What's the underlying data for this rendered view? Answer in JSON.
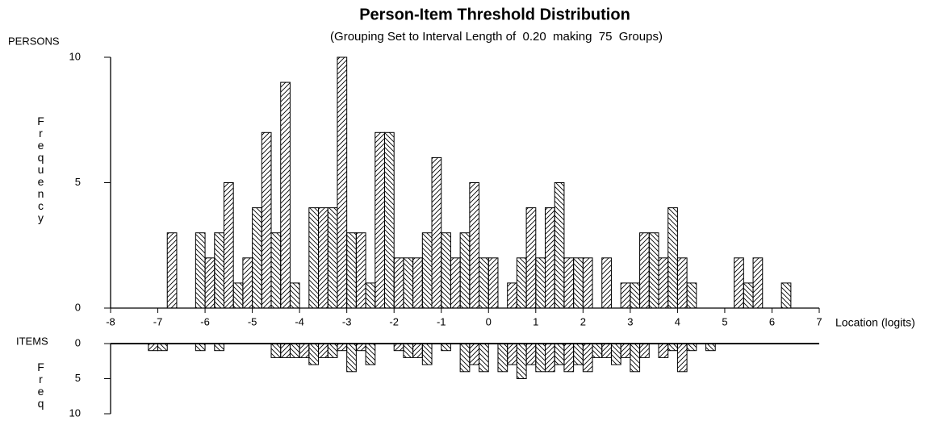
{
  "chart_data": [
    {
      "type": "histogram",
      "title": "Person-Item Threshold Distribution",
      "subtitle": "(Grouping Set to Interval Length of  0.20  making  75  Groups)",
      "group_label": "PERSONS",
      "ylabel": "Frequency",
      "xlabel": "Location (logits)",
      "bins": [
        -8,
        -7.8,
        -7.6,
        -7.4,
        -7.2,
        -7,
        -6.8,
        -6.6,
        -6.4,
        -6.2,
        -6,
        -5.8,
        -5.6,
        -5.4,
        -5.2,
        -5,
        -4.8,
        -4.6,
        -4.4,
        -4.2,
        -4,
        -3.8,
        -3.6,
        -3.4,
        -3.2,
        -3,
        -2.8,
        -2.6,
        -2.4,
        -2.2,
        -2,
        -1.8,
        -1.6,
        -1.4,
        -1.2,
        -1,
        -0.8,
        -0.6,
        -0.4,
        -0.2,
        0,
        0.2,
        0.4,
        0.6,
        0.8,
        1,
        1.2,
        1.4,
        1.6,
        1.8,
        2,
        2.2,
        2.4,
        2.6,
        2.8,
        3,
        3.2,
        3.4,
        3.6,
        3.8,
        4,
        4.2,
        4.4,
        4.6,
        4.8,
        5,
        5.2,
        5.4,
        5.6,
        5.8,
        6,
        6.2,
        6.4,
        6.6,
        6.8,
        7
      ],
      "values": [
        0,
        0,
        0,
        0,
        0,
        0,
        3,
        0,
        0,
        3,
        2,
        3,
        5,
        1,
        2,
        4,
        7,
        3,
        9,
        1,
        0,
        4,
        4,
        4,
        10,
        3,
        3,
        1,
        7,
        7,
        2,
        2,
        2,
        3,
        6,
        3,
        2,
        3,
        5,
        2,
        2,
        0,
        1,
        2,
        4,
        2,
        4,
        5,
        2,
        2,
        2,
        0,
        2,
        0,
        1,
        1,
        3,
        3,
        2,
        4,
        2,
        1,
        0,
        0,
        0,
        0,
        2,
        1,
        2,
        0,
        0,
        1,
        0,
        0,
        0
      ],
      "xlim": [
        -8,
        7
      ],
      "xticks": [
        -8,
        -7,
        -6,
        -5,
        -4,
        -3,
        -2,
        -1,
        0,
        1,
        2,
        3,
        4,
        5,
        6,
        7
      ],
      "ylim": [
        0,
        10
      ],
      "yticks": [
        0,
        5,
        10
      ],
      "color": "#000000",
      "inverted": false
    },
    {
      "type": "histogram",
      "group_label": "ITEMS",
      "ylabel": "Freq",
      "bins": [
        -8,
        -7.8,
        -7.6,
        -7.4,
        -7.2,
        -7,
        -6.8,
        -6.6,
        -6.4,
        -6.2,
        -6,
        -5.8,
        -5.6,
        -5.4,
        -5.2,
        -5,
        -4.8,
        -4.6,
        -4.4,
        -4.2,
        -4,
        -3.8,
        -3.6,
        -3.4,
        -3.2,
        -3,
        -2.8,
        -2.6,
        -2.4,
        -2.2,
        -2,
        -1.8,
        -1.6,
        -1.4,
        -1.2,
        -1,
        -0.8,
        -0.6,
        -0.4,
        -0.2,
        0,
        0.2,
        0.4,
        0.6,
        0.8,
        1,
        1.2,
        1.4,
        1.6,
        1.8,
        2,
        2.2,
        2.4,
        2.6,
        2.8,
        3,
        3.2,
        3.4,
        3.6,
        3.8,
        4,
        4.2,
        4.4,
        4.6,
        4.8,
        5,
        5.2,
        5.4,
        5.6,
        5.8,
        6,
        6.2,
        6.4,
        6.6,
        6.8,
        7
      ],
      "values": [
        0,
        0,
        0,
        0,
        1,
        1,
        0,
        0,
        0,
        1,
        0,
        1,
        0,
        0,
        0,
        0,
        0,
        2,
        2,
        2,
        2,
        3,
        2,
        2,
        1,
        4,
        1,
        3,
        0,
        0,
        1,
        2,
        2,
        3,
        0,
        1,
        0,
        4,
        3,
        4,
        0,
        4,
        3,
        5,
        3,
        4,
        4,
        3,
        4,
        3,
        4,
        2,
        2,
        3,
        2,
        4,
        2,
        0,
        2,
        1,
        4,
        1,
        0,
        1,
        0,
        0,
        0,
        0,
        0,
        0,
        0,
        0,
        0,
        0,
        0
      ],
      "xlim": [
        -8,
        7
      ],
      "ylim": [
        0,
        10
      ],
      "yticks": [
        0,
        5,
        10
      ],
      "color": "#000000",
      "inverted": true
    }
  ]
}
